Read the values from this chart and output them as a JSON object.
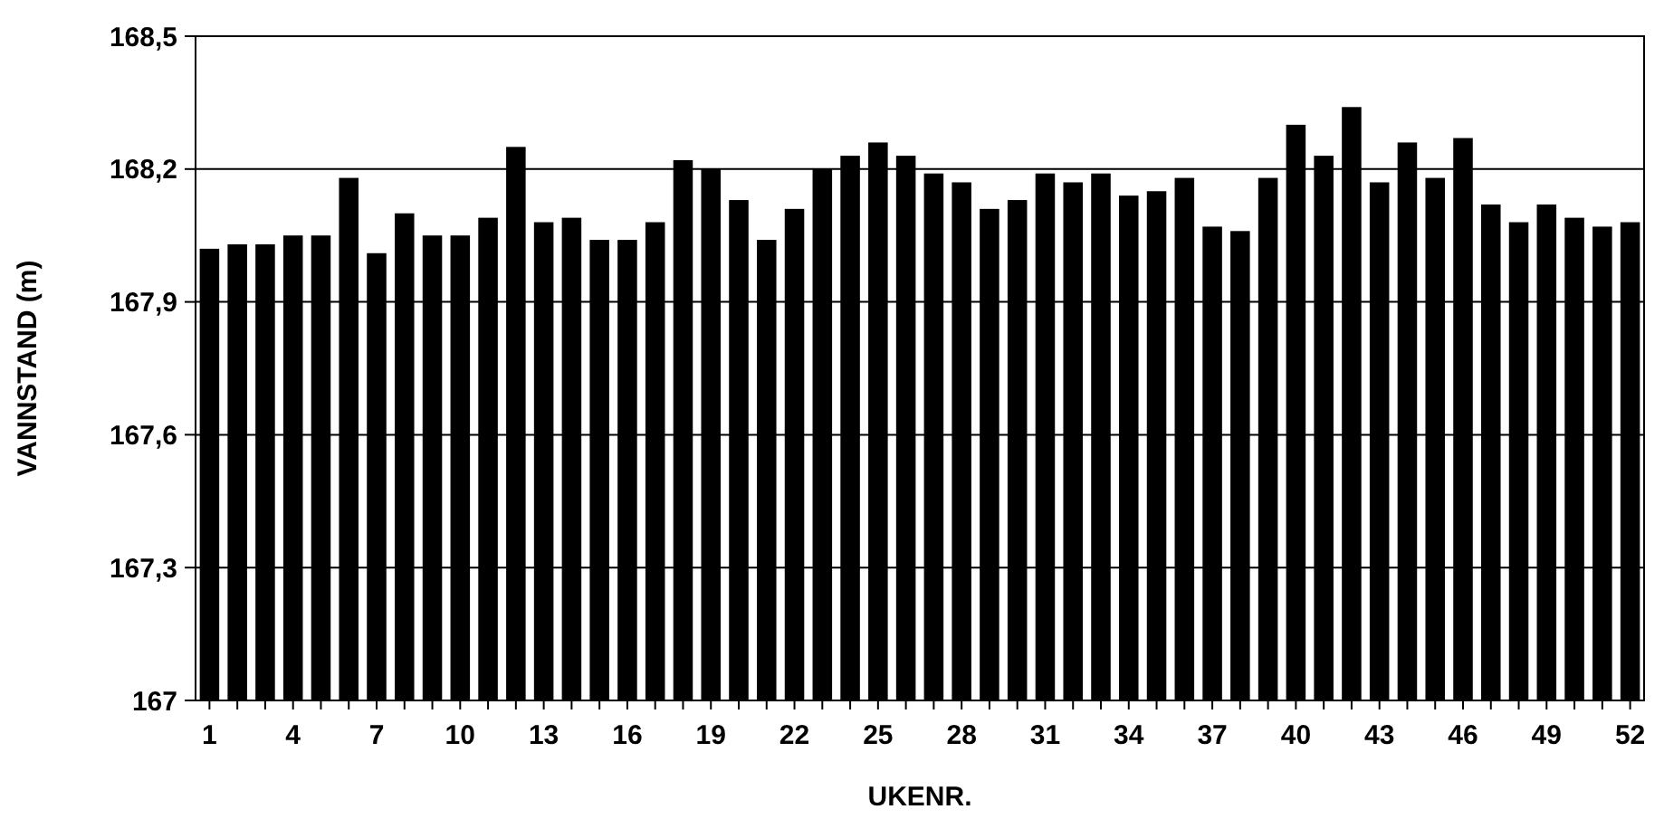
{
  "chart_data": {
    "type": "bar",
    "xlabel": "UKENR.",
    "ylabel": "VANNSTAND (m)",
    "categories": [
      "1",
      null,
      null,
      "4",
      null,
      null,
      "7",
      null,
      null,
      "10",
      null,
      null,
      "13",
      null,
      null,
      "16",
      null,
      null,
      "19",
      null,
      null,
      "22",
      null,
      null,
      "25",
      null,
      null,
      "28",
      null,
      null,
      "31",
      null,
      null,
      "34",
      null,
      null,
      "37",
      null,
      null,
      "40",
      null,
      null,
      "43",
      null,
      null,
      "46",
      null,
      null,
      "49",
      null,
      null,
      "52"
    ],
    "values": [
      168.02,
      168.03,
      168.03,
      168.05,
      168.05,
      168.18,
      168.01,
      168.1,
      168.05,
      168.05,
      168.09,
      168.25,
      168.08,
      168.09,
      168.04,
      168.04,
      168.08,
      168.22,
      168.2,
      168.13,
      168.04,
      168.11,
      168.2,
      168.23,
      168.26,
      168.23,
      168.19,
      168.17,
      168.11,
      168.13,
      168.19,
      168.17,
      168.19,
      168.14,
      168.15,
      168.18,
      168.07,
      168.06,
      168.18,
      168.3,
      168.23,
      168.34,
      168.17,
      168.26,
      168.18,
      168.27,
      168.12,
      168.08,
      168.12,
      168.09,
      168.07,
      168.08
    ],
    "color": "#000000",
    "ylim": [
      167,
      168.5
    ],
    "yticks": [
      167,
      {
        "value": 167.3,
        "label": "167,3"
      },
      {
        "value": 167.6,
        "label": "167,6"
      },
      {
        "value": 167.9,
        "label": "167,9"
      },
      {
        "value": 168.2,
        "label": "168,2"
      },
      {
        "value": 168.5,
        "label": "168,5"
      }
    ],
    "grid": "y"
  }
}
